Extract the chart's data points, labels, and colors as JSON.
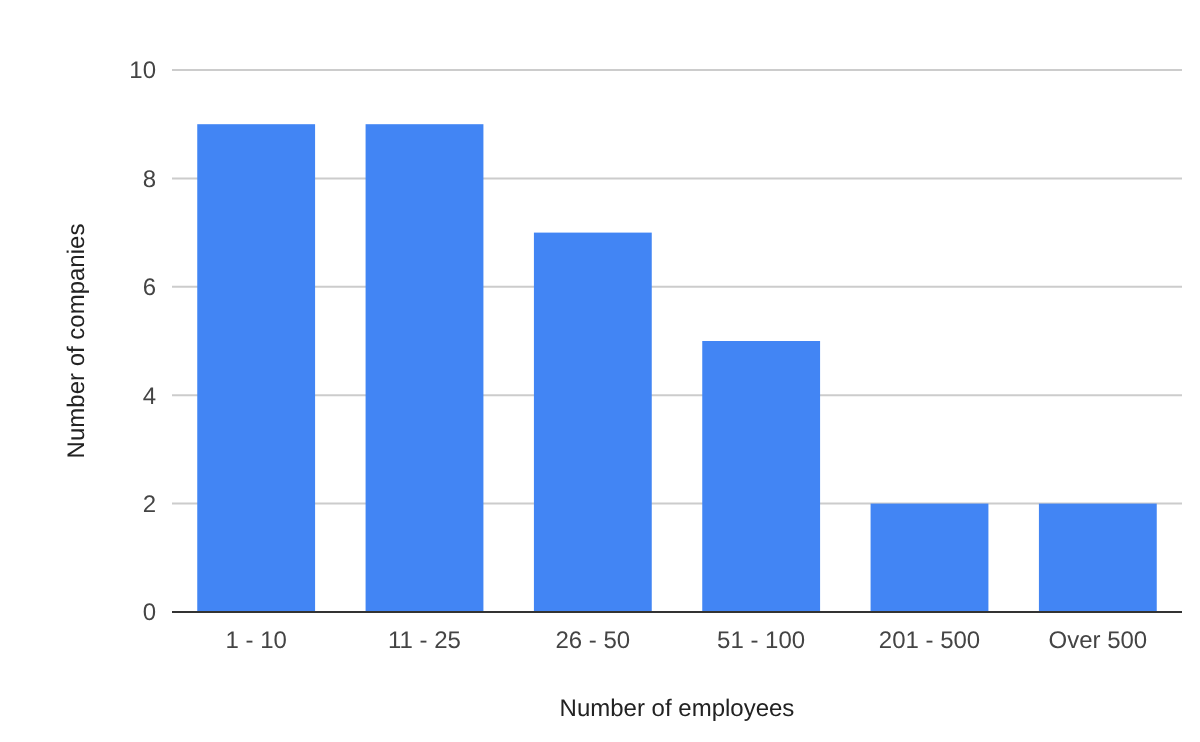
{
  "chart_data": {
    "type": "bar",
    "xlabel": "Number of employees",
    "ylabel": "Number of companies",
    "categories": [
      "1 - 10",
      "11 - 25",
      "26 - 50",
      "51 - 100",
      "201 - 500",
      "Over 500"
    ],
    "values": [
      9,
      9,
      7,
      5,
      2,
      2
    ],
    "color": "#4285f4",
    "ylim": [
      0,
      10
    ],
    "yticks": [
      0,
      2,
      4,
      6,
      8,
      10
    ],
    "grid": "y"
  }
}
